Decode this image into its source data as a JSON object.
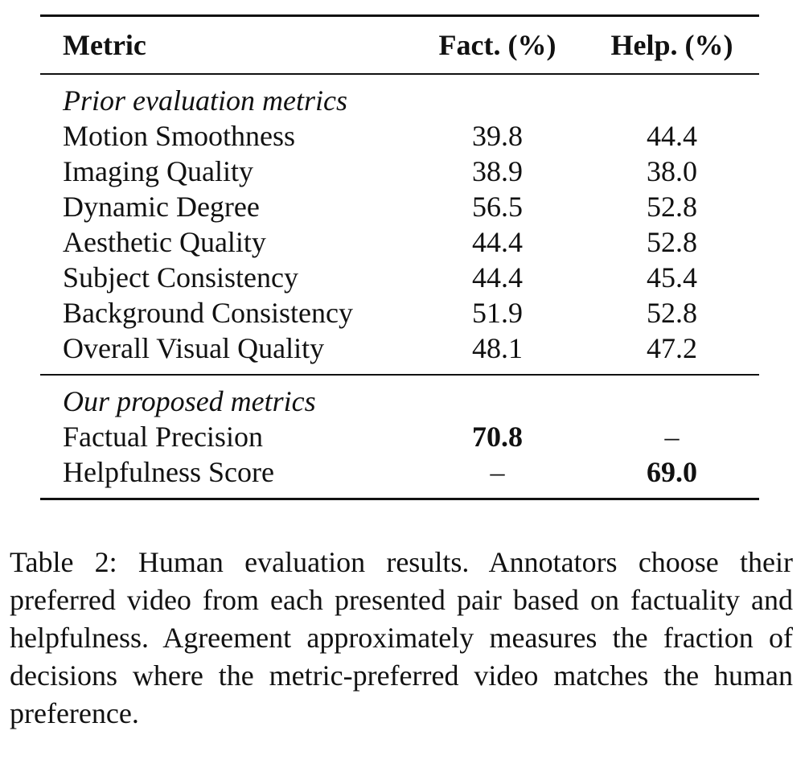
{
  "table": {
    "headers": [
      "Metric",
      "Fact. (%)",
      "Help. (%)"
    ],
    "sections": [
      {
        "title": "Prior evaluation metrics",
        "rows": [
          {
            "metric": "Motion Smoothness",
            "fact": "39.8",
            "help": "44.4"
          },
          {
            "metric": "Imaging Quality",
            "fact": "38.9",
            "help": "38.0"
          },
          {
            "metric": "Dynamic Degree",
            "fact": "56.5",
            "help": "52.8"
          },
          {
            "metric": "Aesthetic Quality",
            "fact": "44.4",
            "help": "52.8"
          },
          {
            "metric": "Subject Consistency",
            "fact": "44.4",
            "help": "45.4"
          },
          {
            "metric": "Background Consistency",
            "fact": "51.9",
            "help": "52.8"
          },
          {
            "metric": "Overall Visual Quality",
            "fact": "48.1",
            "help": "47.2"
          }
        ]
      },
      {
        "title": "Our proposed metrics",
        "rows": [
          {
            "metric": "Factual Precision",
            "fact": "70.8",
            "help": "–",
            "bold": "fact"
          },
          {
            "metric": "Helpfulness Score",
            "fact": "–",
            "help": "69.0",
            "bold": "help"
          }
        ]
      }
    ]
  },
  "caption": "Table 2: Human evaluation results. Annotators choose their preferred video from each presented pair based on factuality and helpfulness. Agreement approximately measures the fraction of decisions where the metric-preferred video matches the human preference."
}
